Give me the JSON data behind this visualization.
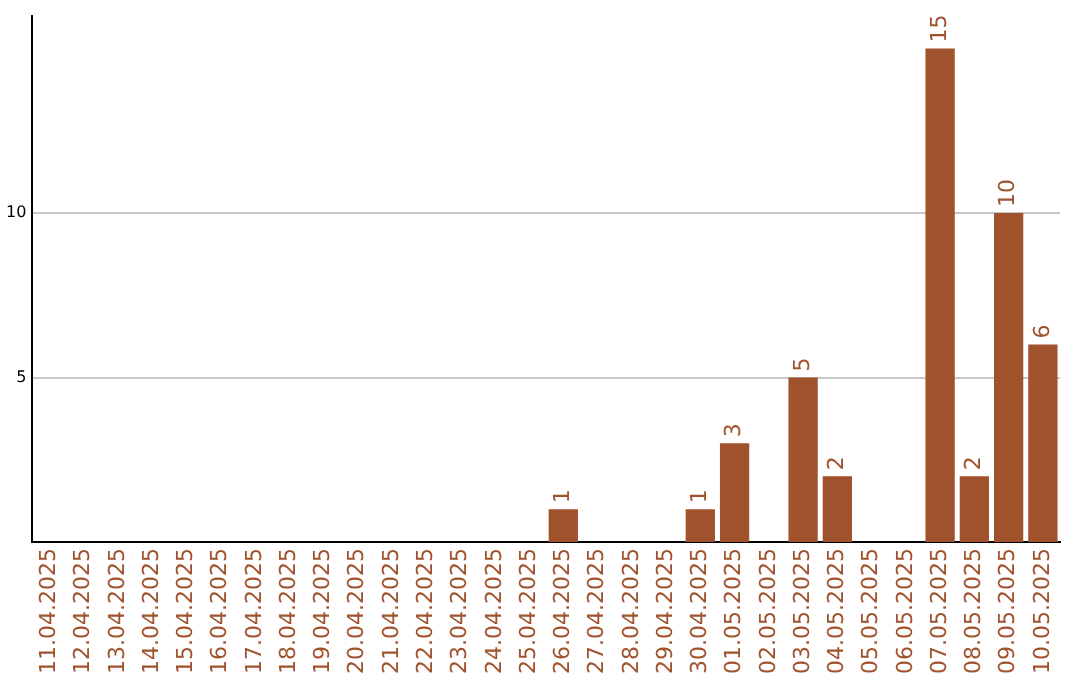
{
  "chart_data": {
    "type": "bar",
    "categories": [
      "11.04.2025",
      "12.04.2025",
      "13.04.2025",
      "14.04.2025",
      "15.04.2025",
      "16.04.2025",
      "17.04.2025",
      "18.04.2025",
      "19.04.2025",
      "20.04.2025",
      "21.04.2025",
      "22.04.2025",
      "23.04.2025",
      "24.04.2025",
      "25.04.2025",
      "26.04.2025",
      "27.04.2025",
      "28.04.2025",
      "29.04.2025",
      "30.04.2025",
      "01.05.2025",
      "02.05.2025",
      "03.05.2025",
      "04.05.2025",
      "05.05.2025",
      "06.05.2025",
      "07.05.2025",
      "08.05.2025",
      "09.05.2025",
      "10.05.2025"
    ],
    "values": [
      null,
      null,
      null,
      null,
      null,
      null,
      null,
      null,
      null,
      null,
      null,
      null,
      null,
      null,
      null,
      1,
      null,
      null,
      null,
      1,
      3,
      null,
      5,
      2,
      null,
      null,
      15,
      2,
      10,
      6
    ],
    "color": "#a0522d",
    "ylim": [
      0,
      16
    ],
    "yticks": [
      5,
      10
    ],
    "grid": "y",
    "data_labels": true,
    "legend": false
  }
}
